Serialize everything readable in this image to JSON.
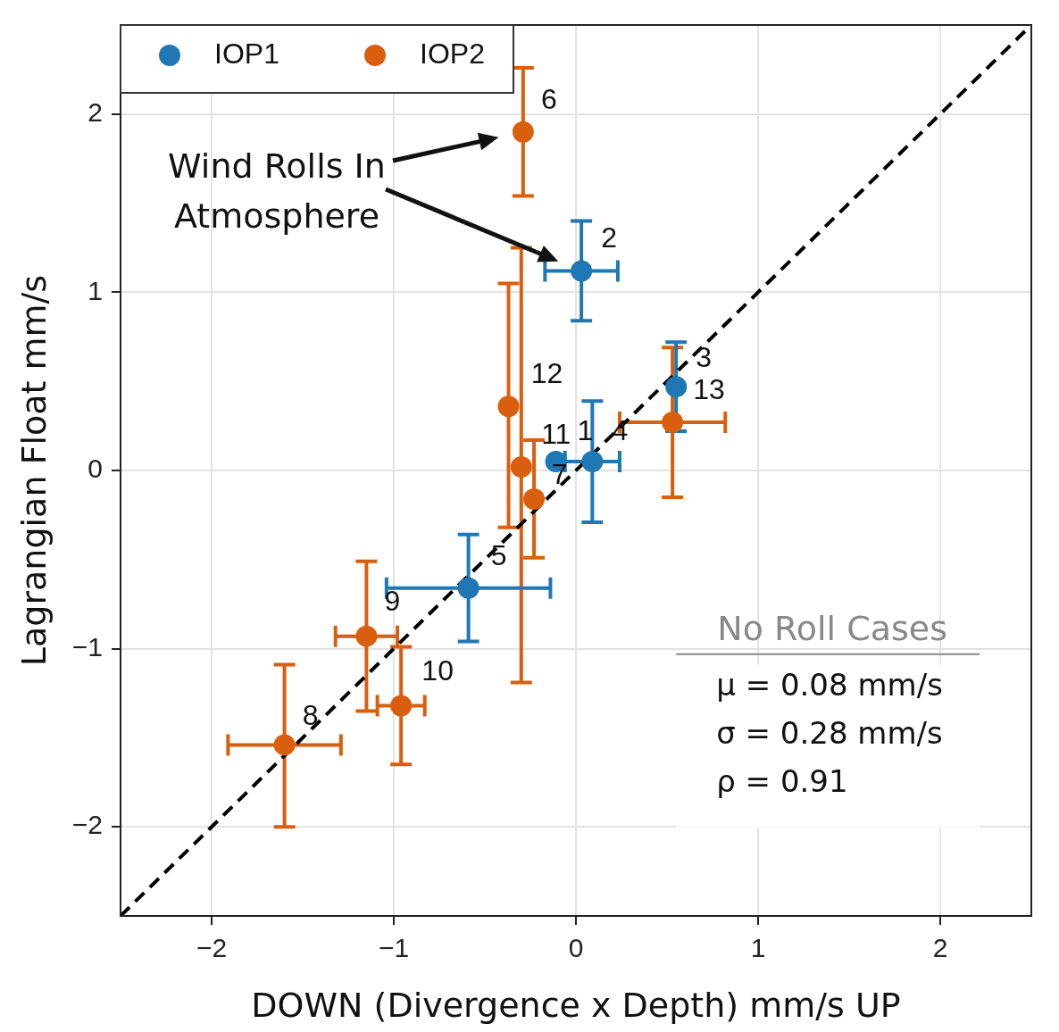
{
  "chart_data": {
    "type": "scatter",
    "xlabel": "DOWN (Divergence x Depth) mm/s UP",
    "ylabel": "Lagrangian Float mm/s",
    "xlim": [
      -2.5,
      2.5
    ],
    "ylim": [
      -2.5,
      2.5
    ],
    "xticks": [
      {
        "value": -2,
        "label": "−2"
      },
      {
        "value": -1,
        "label": "−1"
      },
      0,
      1,
      2
    ],
    "yticks": [
      {
        "value": -2,
        "label": "−2"
      },
      {
        "value": -1,
        "label": "−1"
      },
      0,
      1,
      2
    ],
    "grid": true,
    "legend": "top left",
    "marker": "circle",
    "series": [
      {
        "name": "IOP1",
        "color": "#1f77b4",
        "x": [
          0.09,
          0.03,
          0.55,
          -0.59,
          -0.11
        ],
        "values": [
          0.05,
          1.12,
          0.47,
          -0.66,
          0.05
        ],
        "errors": [
          0.34,
          0.28,
          0.25,
          0.3,
          null
        ],
        "xerrors": [
          0.15,
          0.2,
          null,
          0.45,
          null
        ]
      },
      {
        "name": "IOP2",
        "color": "#d95f0e",
        "x": [
          -0.29,
          -0.37,
          -0.3,
          -0.23,
          0.53,
          -1.15,
          -0.96,
          -1.6
        ],
        "values": [
          1.9,
          0.36,
          0.02,
          -0.16,
          0.27,
          -0.93,
          -1.32,
          -1.54
        ],
        "errors": [
          0.36,
          [
            -0.32,
            1.05
          ],
          [
            -1.19,
            1.25
          ],
          [
            -0.49,
            0.17
          ],
          [
            -0.15,
            0.69
          ],
          0.42,
          0.33,
          [
            -2.0,
            -1.09
          ]
        ],
        "xerrors": [
          null,
          null,
          null,
          null,
          0.29,
          0.17,
          0.13,
          0.31
        ]
      },
      {
        "type": "line",
        "color": "#000000",
        "line_style": "dashed",
        "marker": "none",
        "x": [
          -2.5,
          2.5
        ],
        "values": [
          -2.5,
          2.5
        ]
      }
    ],
    "annotations": [
      {
        "text": "6",
        "x": -0.29,
        "y": 1.9
      },
      {
        "text": "2",
        "x": 0.03,
        "y": 1.12
      },
      {
        "text": "3",
        "x": 0.55,
        "y": 0.47
      },
      {
        "text": "13",
        "x": 0.53,
        "y": 0.27
      },
      {
        "text": "12",
        "x": -0.37,
        "y": 0.36
      },
      {
        "text": "11",
        "x": -0.3,
        "y": 0.02
      },
      {
        "text": "1",
        "x": 0.09,
        "y": 0.05
      },
      {
        "text": "4",
        "x": 0.09,
        "y": 0.05
      },
      {
        "text": "7",
        "x": -0.11,
        "y": 0.05
      },
      {
        "text": "5",
        "x": -0.59,
        "y": -0.66
      },
      {
        "text": "9",
        "x": -1.15,
        "y": -0.93
      },
      {
        "text": "10",
        "x": -0.96,
        "y": -1.32
      },
      {
        "text": "8",
        "x": -1.6,
        "y": -1.54
      },
      "Wind Rolls In Atmosphere",
      "No Roll Cases",
      "μ = 0.08 mm/s",
      "σ = 0.28 mm/s",
      "ρ = 0.91"
    ]
  }
}
